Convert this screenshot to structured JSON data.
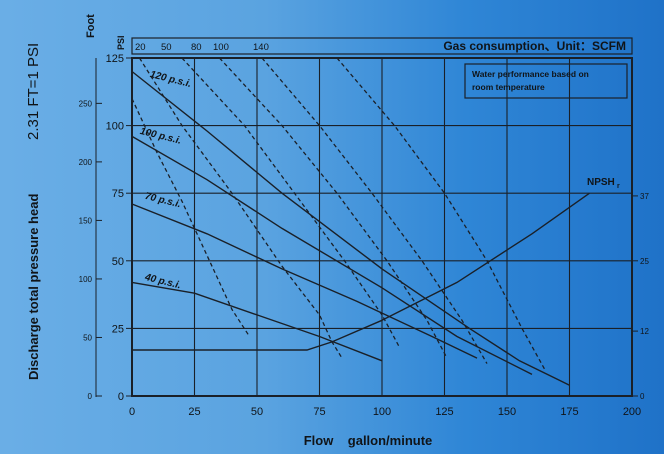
{
  "chart_data": {
    "type": "line",
    "title": "Gas consumption、Unit：SCFM",
    "note_line1": "Water performance based on",
    "note_line2": "room temperature",
    "xlabel": "Flow    gallon/minute",
    "ylabel": "Discharge total pressure head",
    "ylabel_extra": "2.31 FT=1 PSI",
    "left_unit": "Foot",
    "psi_unit": "PSI",
    "xlim": [
      0,
      200
    ],
    "ylim": [
      0,
      125
    ],
    "x_ticks": [
      "0",
      "25",
      "50",
      "75",
      "100",
      "125",
      "150",
      "175",
      "200"
    ],
    "psi_ticks": [
      "0",
      "25",
      "50",
      "75",
      "100",
      "125"
    ],
    "foot_ticks": [
      "0",
      "50",
      "100",
      "150",
      "200",
      "250"
    ],
    "right_ticks": [
      "0",
      "12",
      "25",
      "37"
    ],
    "scfm_ticks": [
      "20",
      "50",
      "80",
      "100",
      "140"
    ],
    "pressure_labels": [
      {
        "text": "120 p.s.i.",
        "x": 7,
        "y": 118
      },
      {
        "text": "100 p.s.i.",
        "x": 3,
        "y": 97
      },
      {
        "text": "70 p.s.i.",
        "x": 5,
        "y": 73
      },
      {
        "text": "40 p.s.i.",
        "x": 5,
        "y": 43
      }
    ],
    "npsh_label": {
      "text": "NPSH",
      "sub": "r",
      "x": 182,
      "y": 78
    },
    "series": [
      {
        "style": "solid",
        "points": [
          [
            0,
            120
          ],
          [
            30,
            98
          ],
          [
            60,
            75
          ],
          [
            100,
            47
          ],
          [
            135,
            25
          ],
          [
            155,
            13
          ],
          [
            175,
            4
          ]
        ]
      },
      {
        "style": "solid",
        "points": [
          [
            0,
            96
          ],
          [
            30,
            80
          ],
          [
            60,
            62
          ],
          [
            100,
            40
          ],
          [
            130,
            22
          ],
          [
            160,
            8
          ]
        ]
      },
      {
        "style": "solid",
        "points": [
          [
            0,
            71
          ],
          [
            30,
            60
          ],
          [
            60,
            47
          ],
          [
            90,
            35
          ],
          [
            120,
            22
          ],
          [
            138,
            14
          ]
        ]
      },
      {
        "style": "solid",
        "points": [
          [
            0,
            42
          ],
          [
            25,
            38
          ],
          [
            50,
            30
          ],
          [
            75,
            22
          ],
          [
            100,
            13
          ]
        ]
      },
      {
        "style": "solid",
        "points": [
          [
            0,
            17
          ],
          [
            70,
            17
          ],
          [
            80,
            20
          ],
          [
            100,
            28
          ],
          [
            130,
            42
          ],
          [
            160,
            60
          ],
          [
            183,
            75
          ]
        ]
      },
      {
        "style": "dashed",
        "points": [
          [
            3,
            125
          ],
          [
            20,
            100
          ],
          [
            40,
            75
          ],
          [
            60,
            48
          ],
          [
            75,
            30
          ],
          [
            80,
            20
          ],
          [
            84,
            14
          ]
        ]
      },
      {
        "style": "dashed",
        "points": [
          [
            20,
            125
          ],
          [
            45,
            100
          ],
          [
            65,
            75
          ],
          [
            85,
            50
          ],
          [
            100,
            30
          ],
          [
            107,
            18
          ]
        ]
      },
      {
        "style": "dashed",
        "points": [
          [
            35,
            125
          ],
          [
            60,
            100
          ],
          [
            82,
            75
          ],
          [
            102,
            50
          ],
          [
            118,
            28
          ],
          [
            126,
            14
          ]
        ]
      },
      {
        "style": "dashed",
        "points": [
          [
            52,
            125
          ],
          [
            75,
            100
          ],
          [
            96,
            75
          ],
          [
            116,
            50
          ],
          [
            132,
            28
          ],
          [
            142,
            12
          ]
        ]
      },
      {
        "style": "dashed",
        "points": [
          [
            82,
            125
          ],
          [
            105,
            100
          ],
          [
            125,
            75
          ],
          [
            142,
            50
          ],
          [
            156,
            25
          ],
          [
            165,
            10
          ]
        ]
      },
      {
        "style": "dashed",
        "points": [
          [
            0,
            110
          ],
          [
            10,
            90
          ],
          [
            20,
            72
          ],
          [
            30,
            52
          ],
          [
            40,
            32
          ],
          [
            47,
            22
          ]
        ]
      }
    ]
  }
}
